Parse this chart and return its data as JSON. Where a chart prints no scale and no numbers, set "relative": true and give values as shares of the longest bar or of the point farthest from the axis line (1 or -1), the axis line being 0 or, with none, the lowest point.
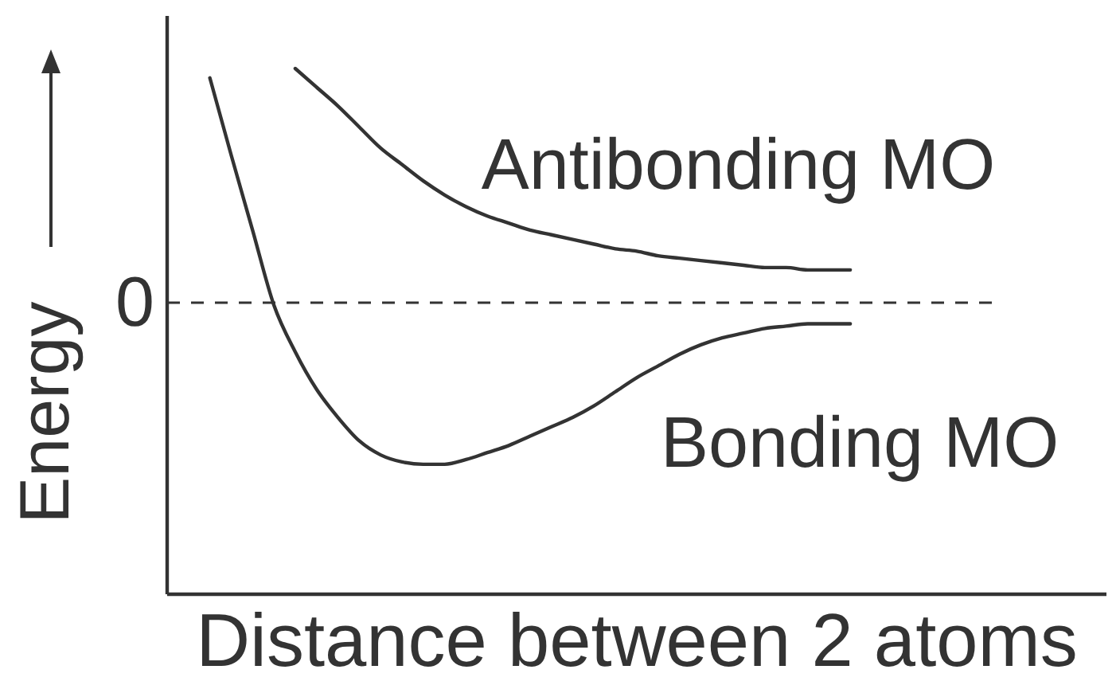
{
  "chart_data": {
    "type": "line",
    "xlabel": "Distance between 2 atoms",
    "ylabel": "Energy",
    "relative": true,
    "categories": [
      null,
      null,
      null,
      null,
      null,
      null,
      null,
      null,
      null,
      null,
      null,
      null,
      null,
      null,
      null,
      null,
      null,
      null,
      null,
      null,
      null,
      null,
      null,
      null,
      null,
      null,
      null,
      null,
      null,
      null,
      null,
      null,
      null,
      null,
      null,
      null,
      null,
      null,
      null,
      null,
      null,
      null,
      null,
      null,
      null
    ],
    "series": [
      {
        "name": "Antibonding MO",
        "color": "#333333",
        "values": [
          null,
          null,
          null,
          null,
          null,
          null,
          1,
          0.92,
          0.84,
          0.75,
          0.66,
          0.59,
          0.52,
          0.46,
          0.41,
          0.37,
          0.34,
          0.31,
          0.29,
          0.27,
          0.25,
          0.23,
          0.22,
          0.2,
          0.19,
          0.18,
          0.17,
          0.16,
          0.15,
          0.15,
          0.14,
          0.14,
          0.14,
          null,
          null,
          null,
          null,
          null,
          null,
          null,
          null,
          null,
          null,
          null,
          null
        ]
      },
      {
        "name": "Bonding MO",
        "color": "#333333",
        "values": [
          null,
          null,
          0.96,
          0.63,
          0.31,
          -0.01,
          -0.21,
          -0.37,
          -0.49,
          -0.59,
          -0.65,
          -0.68,
          -0.69,
          -0.69,
          -0.67,
          -0.64,
          -0.61,
          -0.57,
          -0.53,
          -0.49,
          -0.44,
          -0.38,
          -0.32,
          -0.27,
          -0.22,
          -0.18,
          -0.15,
          -0.13,
          -0.11,
          -0.1,
          -0.09,
          -0.09,
          -0.09,
          null,
          null,
          null,
          null,
          null,
          null,
          null,
          null,
          null,
          null,
          null,
          null
        ]
      }
    ],
    "ref_lines": [
      {
        "axis": "y",
        "value": 0,
        "label": "0",
        "line_style": "dashed",
        "color": "#333333"
      }
    ]
  }
}
